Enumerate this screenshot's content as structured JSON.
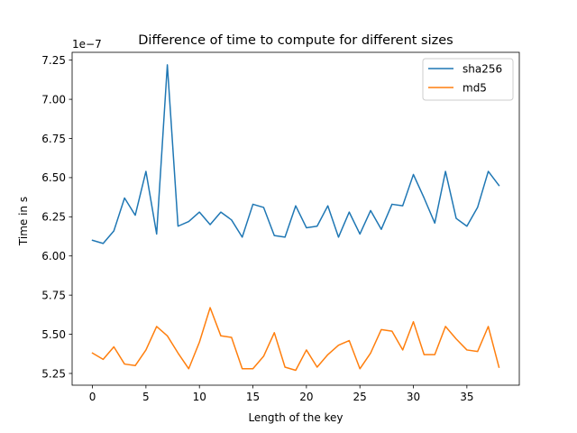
{
  "chart_data": {
    "type": "line",
    "title": "Difference of time to compute for different sizes",
    "xlabel": "Length of the key",
    "ylabel": "Time in s",
    "offset_text": "1e−7",
    "xlim": [
      -1.9,
      39.9
    ],
    "ylim": [
      5.175,
      7.3
    ],
    "xticks": [
      0,
      5,
      10,
      15,
      20,
      25,
      30,
      35
    ],
    "xtick_labels": [
      "0",
      "5",
      "10",
      "15",
      "20",
      "25",
      "30",
      "35"
    ],
    "yticks": [
      5.25,
      5.5,
      5.75,
      6.0,
      6.25,
      6.5,
      6.75,
      7.0,
      7.25
    ],
    "ytick_labels": [
      "5.25",
      "5.50",
      "5.75",
      "6.00",
      "6.25",
      "6.50",
      "6.75",
      "7.00",
      "7.25"
    ],
    "grid": false,
    "legend_position": "top-right",
    "x": [
      0,
      1,
      2,
      3,
      4,
      5,
      6,
      7,
      8,
      9,
      10,
      11,
      12,
      13,
      14,
      15,
      16,
      17,
      18,
      19,
      20,
      21,
      22,
      23,
      24,
      25,
      26,
      27,
      28,
      29,
      30,
      31,
      32,
      33,
      34,
      35,
      36,
      37,
      38
    ],
    "series": [
      {
        "name": "sha256",
        "color": "#1f77b4",
        "values": [
          6.1,
          6.08,
          6.16,
          6.37,
          6.26,
          6.54,
          6.14,
          7.22,
          6.19,
          6.22,
          6.28,
          6.2,
          6.28,
          6.23,
          6.12,
          6.33,
          6.31,
          6.13,
          6.12,
          6.32,
          6.18,
          6.19,
          6.32,
          6.12,
          6.28,
          6.14,
          6.29,
          6.17,
          6.33,
          6.32,
          6.52,
          6.37,
          6.21,
          6.54,
          6.24,
          6.19,
          6.31,
          6.54,
          6.45
        ]
      },
      {
        "name": "md5",
        "color": "#ff7f0e",
        "values": [
          5.38,
          5.34,
          5.42,
          5.31,
          5.3,
          5.4,
          5.55,
          5.49,
          5.38,
          5.28,
          5.45,
          5.67,
          5.49,
          5.48,
          5.28,
          5.28,
          5.36,
          5.51,
          5.29,
          5.27,
          5.4,
          5.29,
          5.37,
          5.43,
          5.46,
          5.28,
          5.38,
          5.53,
          5.52,
          5.4,
          5.58,
          5.37,
          5.37,
          5.55,
          5.47,
          5.4,
          5.39,
          5.55,
          5.29
        ]
      }
    ]
  }
}
